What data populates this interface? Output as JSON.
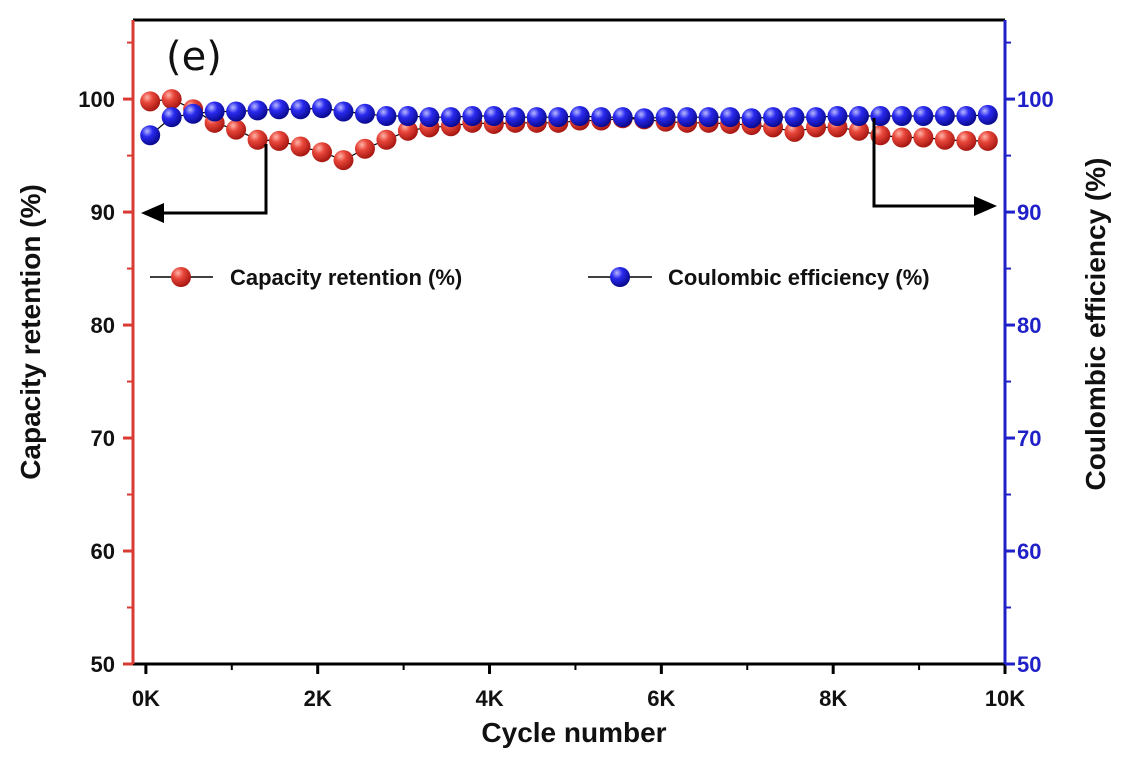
{
  "chart_data": {
    "type": "scatter",
    "panel_label": "(e)",
    "xlabel": "Cycle number",
    "ylabel_left": "Capacity retention (%)",
    "ylabel_right": "Coulombic efficiency (%)",
    "xlim": [
      -150,
      10000
    ],
    "ylim_left": [
      50,
      107
    ],
    "ylim_right": [
      50,
      107
    ],
    "x_ticks": [
      {
        "value": 0,
        "label": "0K"
      },
      {
        "value": 2000,
        "label": "2K"
      },
      {
        "value": 4000,
        "label": "4K"
      },
      {
        "value": 6000,
        "label": "6K"
      },
      {
        "value": 8000,
        "label": "8K"
      },
      {
        "value": 10000,
        "label": "10K"
      }
    ],
    "y_ticks_left": [
      "50",
      "60",
      "70",
      "80",
      "90",
      "100"
    ],
    "y_ticks_right": [
      "50",
      "60",
      "70",
      "80",
      "90",
      "100"
    ],
    "legend_position": "upper-middle",
    "colors": {
      "left_axis": "#d93a33",
      "right_axis": "#2020c8",
      "capacity_marker": "#e03a30",
      "coulombic_marker": "#1a1ae6",
      "frame": "#000000"
    },
    "series": [
      {
        "name": "Capacity retention (%)",
        "axis": "left",
        "x": [
          50,
          300,
          550,
          800,
          1050,
          1300,
          1550,
          1800,
          2050,
          2300,
          2550,
          2800,
          3050,
          3300,
          3550,
          3800,
          4050,
          4300,
          4550,
          4800,
          5050,
          5300,
          5550,
          5800,
          6050,
          6300,
          6550,
          6800,
          7050,
          7300,
          7550,
          7800,
          8050,
          8300,
          8550,
          8800,
          9050,
          9300,
          9550,
          9800
        ],
        "y": [
          99.8,
          100.0,
          99.1,
          97.9,
          97.3,
          96.4,
          96.3,
          95.8,
          95.3,
          94.6,
          95.6,
          96.4,
          97.2,
          97.5,
          97.6,
          97.9,
          97.8,
          97.9,
          97.9,
          97.9,
          98.1,
          98.1,
          98.3,
          98.2,
          98.0,
          97.9,
          97.9,
          97.8,
          97.7,
          97.5,
          97.1,
          97.5,
          97.5,
          97.2,
          96.8,
          96.6,
          96.6,
          96.4,
          96.3,
          96.3
        ]
      },
      {
        "name": "Coulombic efficiency (%)",
        "axis": "right",
        "x": [
          50,
          300,
          550,
          800,
          1050,
          1300,
          1550,
          1800,
          2050,
          2300,
          2550,
          2800,
          3050,
          3300,
          3550,
          3800,
          4050,
          4300,
          4550,
          4800,
          5050,
          5300,
          5550,
          5800,
          6050,
          6300,
          6550,
          6800,
          7050,
          7300,
          7550,
          7800,
          8050,
          8300,
          8550,
          8800,
          9050,
          9300,
          9550,
          9800
        ],
        "y": [
          96.8,
          98.4,
          98.7,
          98.9,
          98.9,
          99.0,
          99.1,
          99.1,
          99.2,
          98.9,
          98.7,
          98.5,
          98.5,
          98.4,
          98.4,
          98.5,
          98.5,
          98.4,
          98.4,
          98.4,
          98.5,
          98.4,
          98.4,
          98.3,
          98.4,
          98.4,
          98.4,
          98.4,
          98.3,
          98.4,
          98.4,
          98.4,
          98.5,
          98.5,
          98.5,
          98.5,
          98.5,
          98.5,
          98.5,
          98.6
        ]
      }
    ]
  }
}
